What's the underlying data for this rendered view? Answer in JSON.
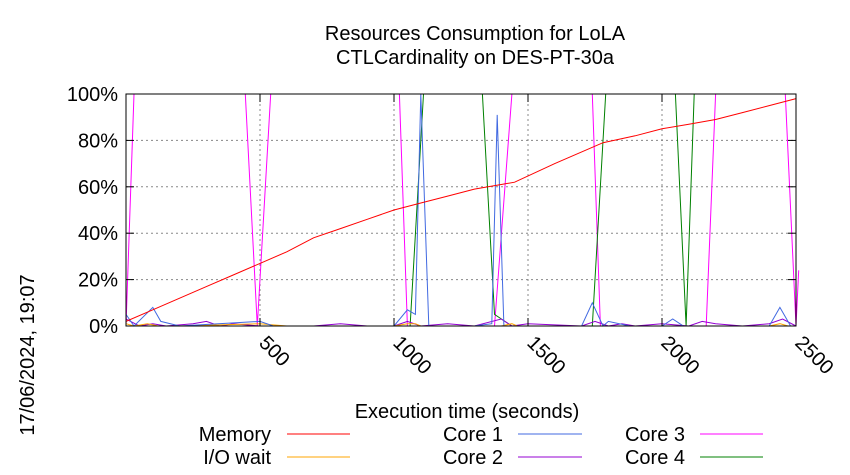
{
  "chart_data": {
    "type": "line",
    "title": "Resources Consumption for LoLA",
    "subtitle": "CTLCardinality on DES-PT-30a",
    "xlabel": "Execution time (seconds)",
    "ylabel": "",
    "timestamp": "17/06/2024, 19:07",
    "xlim": [
      0,
      2500
    ],
    "ylim": [
      0,
      100
    ],
    "x_ticks": [
      "500",
      "1000",
      "1500",
      "2000",
      "2500"
    ],
    "x_tick_values": [
      500,
      1000,
      1500,
      2000,
      2500
    ],
    "y_ticks": [
      "0%",
      "20%",
      "40%",
      "60%",
      "80%",
      "100%"
    ],
    "y_tick_values": [
      0,
      20,
      40,
      60,
      80,
      100
    ],
    "grid": true,
    "legend_position": "bottom",
    "series": [
      {
        "name": "Memory",
        "color": "#ff0000",
        "points": [
          [
            0,
            2
          ],
          [
            100,
            7
          ],
          [
            200,
            12
          ],
          [
            300,
            17
          ],
          [
            400,
            22
          ],
          [
            500,
            27
          ],
          [
            600,
            32
          ],
          [
            700,
            38
          ],
          [
            800,
            42
          ],
          [
            900,
            46
          ],
          [
            1000,
            50
          ],
          [
            1100,
            53
          ],
          [
            1200,
            56
          ],
          [
            1300,
            59
          ],
          [
            1400,
            61
          ],
          [
            1450,
            62
          ],
          [
            1600,
            70
          ],
          [
            1780,
            79
          ],
          [
            1900,
            82
          ],
          [
            2000,
            85
          ],
          [
            2100,
            87
          ],
          [
            2200,
            89
          ],
          [
            2300,
            92
          ],
          [
            2400,
            95
          ],
          [
            2500,
            98
          ]
        ]
      },
      {
        "name": "I/O wait",
        "color": "#ffa500",
        "points": [
          [
            0,
            1
          ],
          [
            30,
            0
          ],
          [
            80,
            1
          ],
          [
            120,
            0
          ],
          [
            200,
            0
          ],
          [
            500,
            1
          ],
          [
            600,
            0
          ],
          [
            1000,
            0
          ],
          [
            1050,
            1
          ],
          [
            1080,
            1
          ],
          [
            1100,
            0
          ],
          [
            1400,
            0
          ],
          [
            1440,
            1
          ],
          [
            1460,
            0
          ],
          [
            2000,
            0
          ],
          [
            2400,
            0
          ],
          [
            2440,
            1
          ],
          [
            2470,
            0
          ],
          [
            2500,
            0
          ]
        ]
      },
      {
        "name": "Core 1",
        "color": "#4169e1",
        "points": [
          [
            0,
            5
          ],
          [
            30,
            0
          ],
          [
            100,
            8
          ],
          [
            130,
            2
          ],
          [
            200,
            0
          ],
          [
            500,
            2
          ],
          [
            550,
            0
          ],
          [
            1000,
            0
          ],
          [
            1050,
            7
          ],
          [
            1080,
            5
          ],
          [
            1100,
            100
          ],
          [
            1130,
            0
          ],
          [
            1300,
            0
          ],
          [
            1365,
            1
          ],
          [
            1385,
            91
          ],
          [
            1410,
            0
          ],
          [
            1700,
            0
          ],
          [
            1740,
            10
          ],
          [
            1780,
            0
          ],
          [
            1800,
            2
          ],
          [
            1880,
            0
          ],
          [
            2000,
            0
          ],
          [
            2040,
            3
          ],
          [
            2080,
            0
          ],
          [
            2400,
            0
          ],
          [
            2440,
            8
          ],
          [
            2480,
            0
          ],
          [
            2500,
            0
          ]
        ]
      },
      {
        "name": "Core 2",
        "color": "#9400d3",
        "points": [
          [
            0,
            3
          ],
          [
            50,
            0
          ],
          [
            100,
            1
          ],
          [
            150,
            0
          ],
          [
            250,
            1
          ],
          [
            300,
            2
          ],
          [
            350,
            0
          ],
          [
            400,
            1
          ],
          [
            500,
            0
          ],
          [
            700,
            0
          ],
          [
            800,
            1
          ],
          [
            900,
            0
          ],
          [
            1000,
            0
          ],
          [
            1050,
            2
          ],
          [
            1100,
            0
          ],
          [
            1200,
            1
          ],
          [
            1300,
            0
          ],
          [
            1400,
            3
          ],
          [
            1440,
            0
          ],
          [
            1500,
            1
          ],
          [
            1700,
            0
          ],
          [
            1750,
            2
          ],
          [
            1800,
            0
          ],
          [
            1850,
            1
          ],
          [
            1900,
            0
          ],
          [
            2000,
            1
          ],
          [
            2100,
            0
          ],
          [
            2150,
            2
          ],
          [
            2200,
            1
          ],
          [
            2300,
            0
          ],
          [
            2400,
            1
          ],
          [
            2450,
            3
          ],
          [
            2500,
            0
          ]
        ]
      },
      {
        "name": "Core 3",
        "color": "#ff00ff",
        "points": [
          [
            0,
            0
          ],
          [
            30,
            100
          ],
          [
            445,
            100
          ],
          [
            490,
            0
          ],
          [
            540,
            100
          ],
          [
            1020,
            100
          ],
          [
            1050,
            0
          ],
          [
            1375,
            0
          ],
          [
            1440,
            100
          ],
          [
            1740,
            100
          ],
          [
            1770,
            0
          ],
          [
            2165,
            0
          ],
          [
            2200,
            100
          ],
          [
            2460,
            100
          ],
          [
            2500,
            0
          ],
          [
            2510,
            24
          ]
        ]
      },
      {
        "name": "Core 4",
        "color": "#008000",
        "points": [
          [
            0,
            0
          ],
          [
            1020,
            0
          ],
          [
            1060,
            0
          ],
          [
            1110,
            100
          ],
          [
            1330,
            100
          ],
          [
            1375,
            5
          ],
          [
            1440,
            0
          ],
          [
            1740,
            0
          ],
          [
            1790,
            100
          ],
          [
            2050,
            100
          ],
          [
            2090,
            0
          ],
          [
            2120,
            100
          ],
          [
            2500,
            100
          ]
        ]
      }
    ]
  }
}
